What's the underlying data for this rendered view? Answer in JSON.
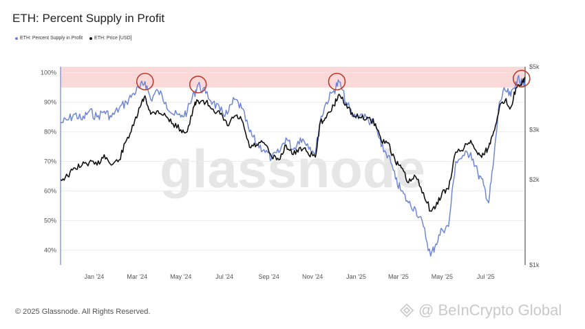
{
  "header": {
    "title": "ETH: Percent Supply in Profit"
  },
  "legend": [
    {
      "label": "ETH: Percent Supply in Profit",
      "color": "#6f86d6"
    },
    {
      "label": "ETH: Price [USD]",
      "color": "#111111"
    }
  ],
  "footer": {
    "copyright": "© 2025 Glassnode. All Rights Reserved.",
    "brand": "@ BeInCrypto Global"
  },
  "watermark": "glassnode",
  "chart_data": {
    "type": "line",
    "title": "ETH: Percent Supply in Profit",
    "x_ticks": [
      "Jan '24",
      "Mar '24",
      "May '24",
      "Jul '24",
      "Sep '24",
      "Nov '24",
      "Jan '25",
      "Mar '25",
      "May '25",
      "Jul '25"
    ],
    "y_left_ticks": [
      "40%",
      "50%",
      "60%",
      "70%",
      "80%",
      "90%",
      "100%"
    ],
    "y_left_range": [
      35,
      102
    ],
    "y_right_ticks": [
      "$1k",
      "$2k",
      "$3k",
      "$5k"
    ],
    "y_right_scale": "log",
    "y_right_range": [
      1000,
      5000
    ],
    "shaded_band": {
      "from": 95,
      "to": 102,
      "color": "#fbd9d9"
    },
    "highlight_circles": [
      {
        "date": "2024-03-12",
        "value": 97
      },
      {
        "date": "2024-05-25",
        "value": 96
      },
      {
        "date": "2024-12-05",
        "value": 97
      },
      {
        "date": "2025-08-20",
        "value": 98
      }
    ],
    "series": [
      {
        "name": "ETH: Percent Supply in Profit",
        "axis": "left",
        "color": "#6f86d6",
        "points": [
          [
            "2023-11-15",
            83
          ],
          [
            "2023-11-25",
            84
          ],
          [
            "2023-12-05",
            86
          ],
          [
            "2023-12-15",
            84
          ],
          [
            "2023-12-25",
            87
          ],
          [
            "2024-01-05",
            85
          ],
          [
            "2024-01-15",
            87
          ],
          [
            "2024-01-25",
            85
          ],
          [
            "2024-02-05",
            88
          ],
          [
            "2024-02-15",
            90
          ],
          [
            "2024-02-25",
            93
          ],
          [
            "2024-03-05",
            95
          ],
          [
            "2024-03-12",
            97
          ],
          [
            "2024-03-20",
            91
          ],
          [
            "2024-03-30",
            94
          ],
          [
            "2024-04-10",
            90
          ],
          [
            "2024-04-20",
            86
          ],
          [
            "2024-05-01",
            85
          ],
          [
            "2024-05-10",
            87
          ],
          [
            "2024-05-20",
            93
          ],
          [
            "2024-05-25",
            96
          ],
          [
            "2024-06-05",
            93
          ],
          [
            "2024-06-15",
            90
          ],
          [
            "2024-06-25",
            87
          ],
          [
            "2024-07-05",
            86
          ],
          [
            "2024-07-15",
            91
          ],
          [
            "2024-07-25",
            88
          ],
          [
            "2024-08-05",
            80
          ],
          [
            "2024-08-15",
            76
          ],
          [
            "2024-08-25",
            74
          ],
          [
            "2024-09-05",
            71
          ],
          [
            "2024-09-15",
            73
          ],
          [
            "2024-09-25",
            78
          ],
          [
            "2024-10-05",
            74
          ],
          [
            "2024-10-15",
            78
          ],
          [
            "2024-10-25",
            76
          ],
          [
            "2024-11-05",
            73
          ],
          [
            "2024-11-12",
            84
          ],
          [
            "2024-11-20",
            90
          ],
          [
            "2024-12-01",
            94
          ],
          [
            "2024-12-08",
            97
          ],
          [
            "2024-12-18",
            90
          ],
          [
            "2024-12-28",
            85
          ],
          [
            "2025-01-08",
            86
          ],
          [
            "2025-01-18",
            84
          ],
          [
            "2025-01-28",
            82
          ],
          [
            "2025-02-05",
            75
          ],
          [
            "2025-02-15",
            72
          ],
          [
            "2025-02-25",
            64
          ],
          [
            "2025-03-05",
            60
          ],
          [
            "2025-03-15",
            56
          ],
          [
            "2025-03-25",
            54
          ],
          [
            "2025-04-05",
            48
          ],
          [
            "2025-04-15",
            38
          ],
          [
            "2025-04-22",
            42
          ],
          [
            "2025-05-01",
            47
          ],
          [
            "2025-05-10",
            48
          ],
          [
            "2025-05-20",
            70
          ],
          [
            "2025-06-01",
            72
          ],
          [
            "2025-06-10",
            73
          ],
          [
            "2025-06-20",
            66
          ],
          [
            "2025-06-28",
            62
          ],
          [
            "2025-07-05",
            56
          ],
          [
            "2025-07-12",
            70
          ],
          [
            "2025-07-20",
            90
          ],
          [
            "2025-07-28",
            94
          ],
          [
            "2025-08-05",
            92
          ],
          [
            "2025-08-12",
            97
          ],
          [
            "2025-08-20",
            98
          ],
          [
            "2025-08-25",
            96
          ]
        ]
      },
      {
        "name": "ETH: Price [USD]",
        "axis": "right",
        "color": "#111111",
        "points": [
          [
            "2023-11-15",
            2000
          ],
          [
            "2023-11-25",
            2060
          ],
          [
            "2023-12-05",
            2200
          ],
          [
            "2023-12-15",
            2250
          ],
          [
            "2023-12-25",
            2300
          ],
          [
            "2024-01-05",
            2250
          ],
          [
            "2024-01-15",
            2450
          ],
          [
            "2024-01-25",
            2250
          ],
          [
            "2024-02-05",
            2350
          ],
          [
            "2024-02-15",
            2750
          ],
          [
            "2024-02-25",
            3100
          ],
          [
            "2024-03-05",
            3600
          ],
          [
            "2024-03-12",
            3950
          ],
          [
            "2024-03-20",
            3400
          ],
          [
            "2024-03-30",
            3500
          ],
          [
            "2024-04-10",
            3350
          ],
          [
            "2024-04-20",
            3150
          ],
          [
            "2024-05-01",
            3000
          ],
          [
            "2024-05-10",
            2950
          ],
          [
            "2024-05-20",
            3650
          ],
          [
            "2024-05-25",
            3800
          ],
          [
            "2024-06-05",
            3750
          ],
          [
            "2024-06-15",
            3550
          ],
          [
            "2024-06-25",
            3400
          ],
          [
            "2024-07-05",
            3100
          ],
          [
            "2024-07-15",
            3350
          ],
          [
            "2024-07-25",
            3250
          ],
          [
            "2024-08-05",
            2600
          ],
          [
            "2024-08-15",
            2650
          ],
          [
            "2024-08-25",
            2700
          ],
          [
            "2024-09-05",
            2400
          ],
          [
            "2024-09-15",
            2350
          ],
          [
            "2024-09-25",
            2650
          ],
          [
            "2024-10-05",
            2450
          ],
          [
            "2024-10-15",
            2600
          ],
          [
            "2024-10-25",
            2500
          ],
          [
            "2024-11-05",
            2400
          ],
          [
            "2024-11-12",
            3200
          ],
          [
            "2024-11-20",
            3300
          ],
          [
            "2024-12-01",
            3650
          ],
          [
            "2024-12-08",
            4000
          ],
          [
            "2024-12-18",
            3700
          ],
          [
            "2024-12-28",
            3350
          ],
          [
            "2025-01-08",
            3300
          ],
          [
            "2025-01-18",
            3300
          ],
          [
            "2025-01-28",
            3150
          ],
          [
            "2025-02-05",
            2750
          ],
          [
            "2025-02-15",
            2700
          ],
          [
            "2025-02-25",
            2300
          ],
          [
            "2025-03-05",
            2200
          ],
          [
            "2025-03-15",
            1950
          ],
          [
            "2025-03-25",
            2050
          ],
          [
            "2025-04-05",
            1800
          ],
          [
            "2025-04-15",
            1550
          ],
          [
            "2025-04-22",
            1600
          ],
          [
            "2025-05-01",
            1800
          ],
          [
            "2025-05-10",
            1850
          ],
          [
            "2025-05-20",
            2500
          ],
          [
            "2025-06-01",
            2600
          ],
          [
            "2025-06-10",
            2750
          ],
          [
            "2025-06-20",
            2450
          ],
          [
            "2025-06-28",
            2450
          ],
          [
            "2025-07-05",
            2600
          ],
          [
            "2025-07-12",
            2950
          ],
          [
            "2025-07-20",
            3600
          ],
          [
            "2025-07-28",
            3800
          ],
          [
            "2025-08-05",
            3600
          ],
          [
            "2025-08-12",
            4200
          ],
          [
            "2025-08-20",
            4300
          ],
          [
            "2025-08-25",
            4600
          ]
        ]
      }
    ]
  }
}
